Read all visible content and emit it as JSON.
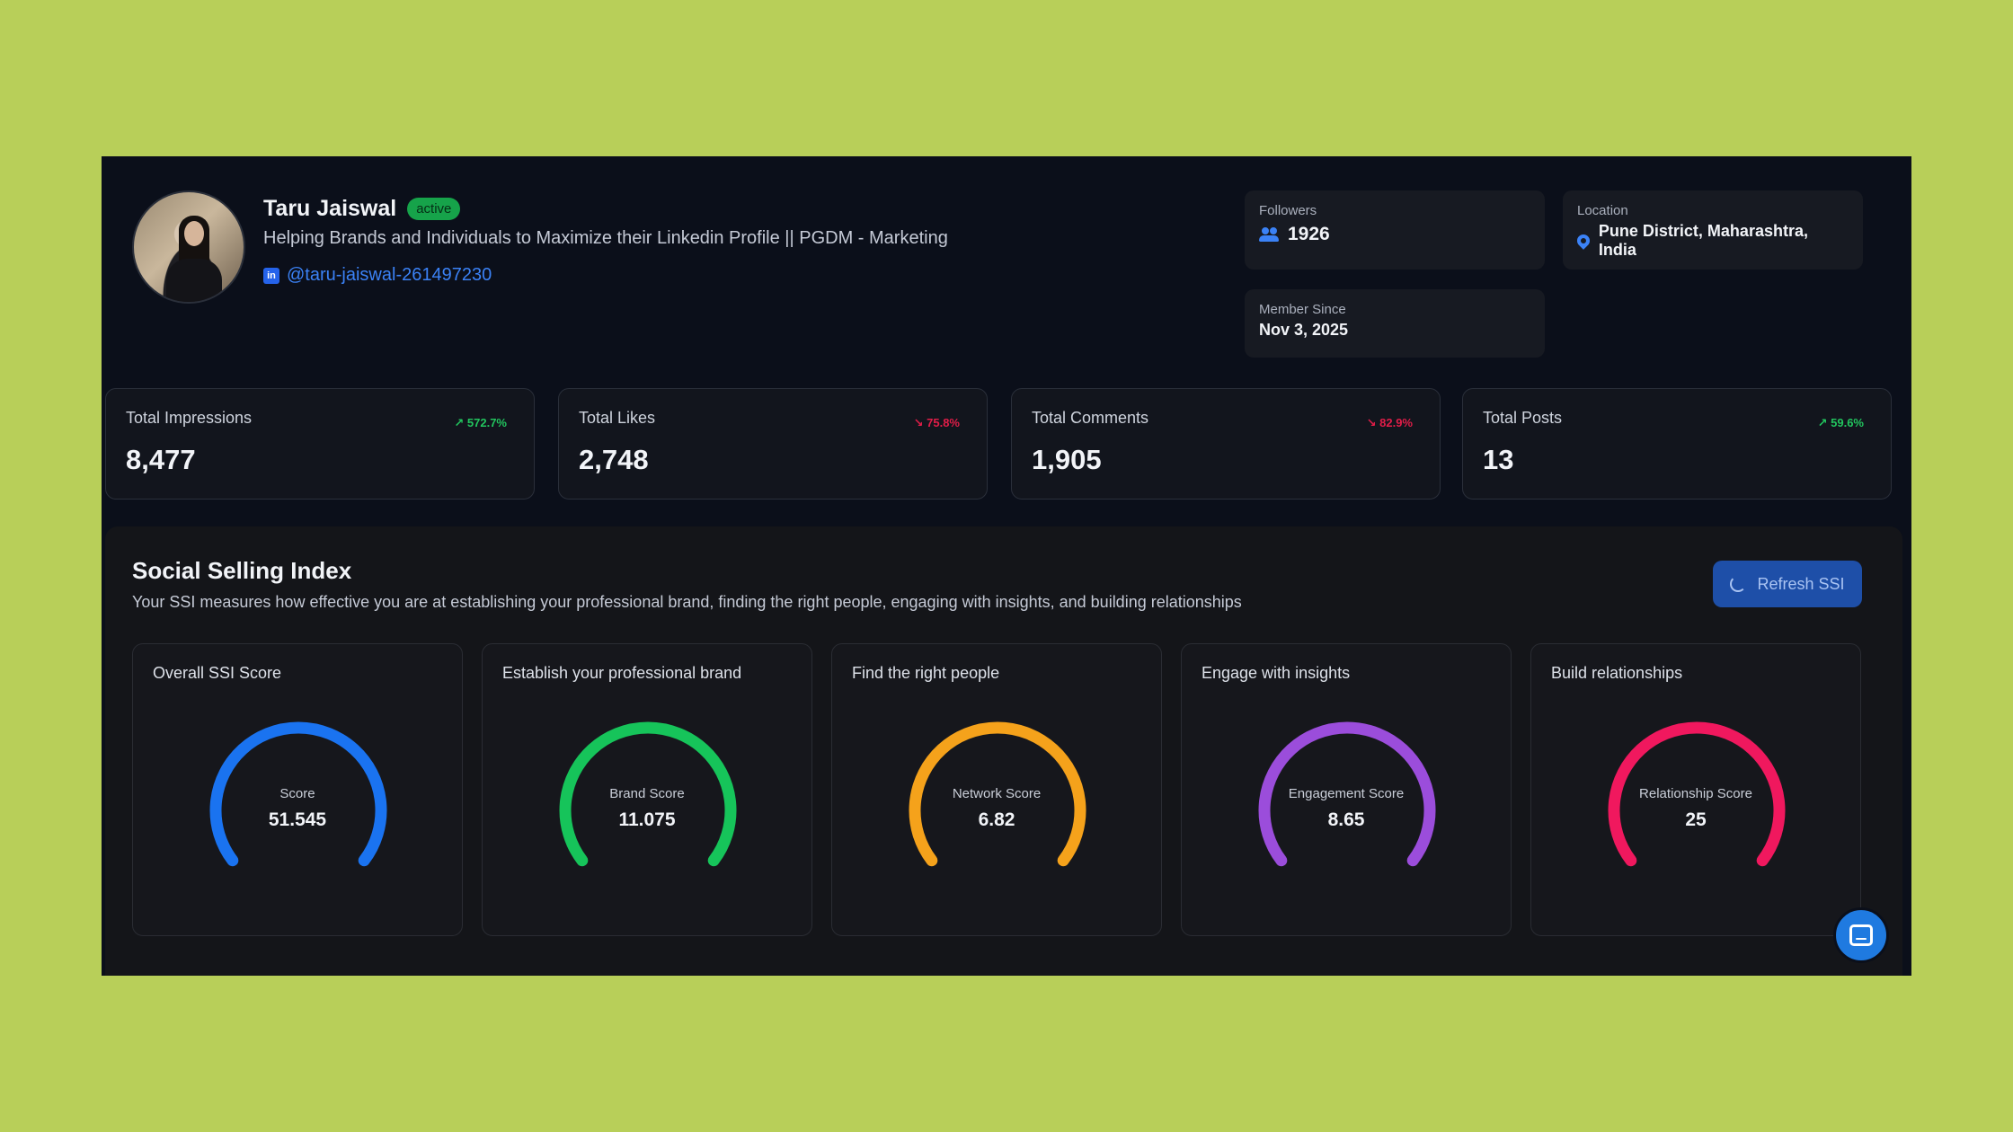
{
  "profile": {
    "name": "Taru Jaiswal",
    "status": "active",
    "headline": "Helping Brands and Individuals to Maximize their Linkedin Profile || PGDM - Marketing",
    "handle": "@taru-jaiswal-261497230",
    "linkedin_icon": "in"
  },
  "info": {
    "followers_label": "Followers",
    "followers_value": "1926",
    "location_label": "Location",
    "location_value": "Pune District, Maharashtra, India",
    "member_label": "Member Since",
    "member_value": "Nov 3, 2025"
  },
  "stats": [
    {
      "label": "Total Impressions",
      "value": "8,477",
      "delta": "↗ 572.7%",
      "trend": "up"
    },
    {
      "label": "Total Likes",
      "value": "2,748",
      "delta": "↘ 75.8%",
      "trend": "down"
    },
    {
      "label": "Total Comments",
      "value": "1,905",
      "delta": "↘ 82.9%",
      "trend": "down"
    },
    {
      "label": "Total Posts",
      "value": "13",
      "delta": "↗ 59.6%",
      "trend": "up"
    }
  ],
  "ssi": {
    "title": "Social Selling Index",
    "description": "Your SSI measures how effective you are at establishing your professional brand, finding the right people, engaging with insights, and building relationships",
    "refresh_label": "Refresh SSI",
    "gauges": [
      {
        "title": "Overall SSI Score",
        "label": "Score",
        "value": "51.545",
        "color": "#1a73f0"
      },
      {
        "title": "Establish your professional brand",
        "label": "Brand Score",
        "value": "11.075",
        "color": "#16c45a"
      },
      {
        "title": "Find the right people",
        "label": "Network Score",
        "value": "6.82",
        "color": "#f5a21b"
      },
      {
        "title": "Engage with insights",
        "label": "Engagement Score",
        "value": "8.65",
        "color": "#9b4ddb"
      },
      {
        "title": "Build relationships",
        "label": "Relationship Score",
        "value": "25",
        "color": "#f0185e"
      }
    ]
  },
  "colors": {
    "accent": "#3b82f6",
    "up": "#22c55e",
    "down": "#e11d48",
    "panel": "#0b0f1a"
  },
  "icons": {
    "followers": "users-icon",
    "location": "map-pin-icon",
    "refresh": "spinner-icon",
    "chat": "chat-icon"
  }
}
